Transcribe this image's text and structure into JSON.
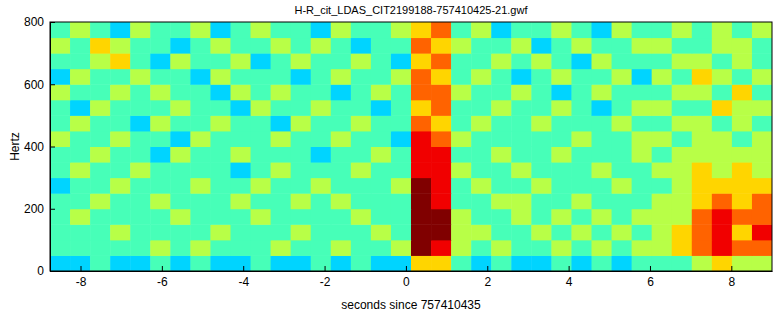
{
  "chart_data": {
    "type": "heatmap",
    "title": "H-R_cit_LDAS_CIT2199188-757410425-21.gwf",
    "x_label": "seconds since 757410435",
    "y_label": "Hertz",
    "xlim": [
      -8.75,
      9
    ],
    "xticks": [
      -8,
      -6,
      -4,
      -2,
      0,
      2,
      4,
      6,
      8
    ],
    "ylim": [
      0,
      800
    ],
    "yticks": [
      0,
      200,
      400,
      600,
      800
    ],
    "zlim": [
      0,
      9
    ],
    "cells": [
      [
        3,
        3,
        4,
        3,
        3,
        4,
        3,
        4,
        3,
        3,
        4,
        3,
        3,
        4,
        3,
        4,
        3,
        3,
        6,
        6,
        4,
        3,
        4,
        3,
        3,
        4,
        3,
        4,
        3,
        4,
        4,
        4,
        5,
        6,
        5,
        5
      ],
      [
        4,
        4,
        4,
        4,
        4,
        5,
        4,
        5,
        4,
        4,
        4,
        5,
        4,
        4,
        5,
        4,
        4,
        5,
        9,
        8,
        5,
        4,
        5,
        4,
        4,
        5,
        4,
        5,
        4,
        5,
        5,
        6,
        7,
        8,
        7,
        7
      ],
      [
        4,
        4,
        4,
        5,
        4,
        4,
        4,
        4,
        5,
        4,
        4,
        4,
        5,
        4,
        4,
        4,
        5,
        4,
        9,
        9,
        5,
        5,
        4,
        4,
        5,
        4,
        5,
        4,
        5,
        4,
        5,
        6,
        7,
        8,
        6,
        8
      ],
      [
        4,
        5,
        4,
        4,
        4,
        4,
        5,
        4,
        4,
        4,
        5,
        4,
        4,
        4,
        4,
        5,
        4,
        4,
        9,
        9,
        5,
        4,
        4,
        5,
        4,
        5,
        4,
        5,
        4,
        5,
        5,
        5,
        7,
        8,
        7,
        7
      ],
      [
        4,
        4,
        5,
        4,
        4,
        5,
        4,
        4,
        4,
        5,
        4,
        4,
        5,
        4,
        5,
        4,
        4,
        4,
        9,
        8,
        4,
        4,
        5,
        5,
        4,
        4,
        5,
        4,
        4,
        4,
        5,
        5,
        6,
        7,
        6,
        7
      ],
      [
        3,
        4,
        4,
        5,
        4,
        4,
        4,
        5,
        4,
        4,
        5,
        4,
        4,
        5,
        4,
        4,
        4,
        5,
        9,
        8,
        4,
        5,
        4,
        4,
        5,
        4,
        4,
        4,
        5,
        4,
        4,
        5,
        6,
        6,
        6,
        6
      ],
      [
        4,
        5,
        4,
        4,
        5,
        4,
        4,
        4,
        4,
        3,
        4,
        5,
        4,
        4,
        4,
        5,
        4,
        4,
        8,
        8,
        5,
        4,
        4,
        5,
        4,
        4,
        4,
        5,
        4,
        4,
        5,
        5,
        6,
        5,
        6,
        5
      ],
      [
        4,
        4,
        5,
        4,
        4,
        3,
        5,
        4,
        4,
        5,
        4,
        4,
        4,
        3,
        4,
        4,
        5,
        4,
        8,
        8,
        4,
        4,
        5,
        4,
        4,
        5,
        4,
        4,
        4,
        5,
        4,
        5,
        5,
        5,
        5,
        5
      ],
      [
        5,
        4,
        4,
        5,
        4,
        4,
        3,
        5,
        4,
        4,
        4,
        5,
        4,
        4,
        5,
        4,
        4,
        3,
        8,
        7,
        5,
        4,
        4,
        4,
        4,
        4,
        5,
        4,
        4,
        5,
        5,
        4,
        5,
        5,
        4,
        5
      ],
      [
        4,
        5,
        4,
        4,
        3,
        5,
        4,
        4,
        5,
        4,
        4,
        3,
        5,
        4,
        4,
        5,
        4,
        4,
        7,
        6,
        4,
        5,
        4,
        4,
        5,
        4,
        4,
        4,
        5,
        4,
        4,
        5,
        5,
        4,
        5,
        4
      ],
      [
        4,
        3,
        5,
        4,
        4,
        4,
        5,
        4,
        4,
        3,
        5,
        4,
        4,
        5,
        4,
        4,
        3,
        4,
        6,
        7,
        4,
        4,
        5,
        4,
        4,
        5,
        4,
        3,
        4,
        5,
        5,
        4,
        4,
        6,
        5,
        5
      ],
      [
        5,
        4,
        4,
        5,
        4,
        5,
        4,
        4,
        3,
        5,
        4,
        5,
        4,
        4,
        3,
        4,
        5,
        4,
        7,
        7,
        5,
        4,
        4,
        5,
        4,
        3,
        4,
        5,
        4,
        4,
        4,
        5,
        5,
        4,
        6,
        4
      ],
      [
        3,
        5,
        4,
        4,
        5,
        4,
        4,
        3,
        5,
        4,
        4,
        4,
        3,
        4,
        5,
        4,
        4,
        5,
        7,
        6,
        4,
        5,
        4,
        3,
        4,
        5,
        4,
        4,
        5,
        3,
        5,
        4,
        6,
        5,
        4,
        5
      ],
      [
        4,
        4,
        5,
        6,
        4,
        3,
        5,
        4,
        4,
        5,
        3,
        4,
        5,
        4,
        4,
        5,
        4,
        3,
        6,
        7,
        4,
        4,
        5,
        4,
        5,
        4,
        3,
        5,
        4,
        4,
        4,
        5,
        5,
        4,
        5,
        4
      ],
      [
        5,
        4,
        6,
        5,
        4,
        4,
        3,
        4,
        5,
        4,
        4,
        5,
        4,
        5,
        4,
        3,
        4,
        4,
        7,
        6,
        5,
        4,
        4,
        5,
        3,
        4,
        5,
        4,
        4,
        5,
        5,
        4,
        4,
        5,
        5,
        4
      ],
      [
        4,
        5,
        4,
        3,
        5,
        4,
        4,
        5,
        3,
        4,
        5,
        4,
        4,
        3,
        5,
        4,
        4,
        5,
        6,
        7,
        4,
        5,
        3,
        4,
        4,
        5,
        4,
        3,
        5,
        4,
        4,
        5,
        4,
        5,
        4,
        5
      ]
    ]
  }
}
